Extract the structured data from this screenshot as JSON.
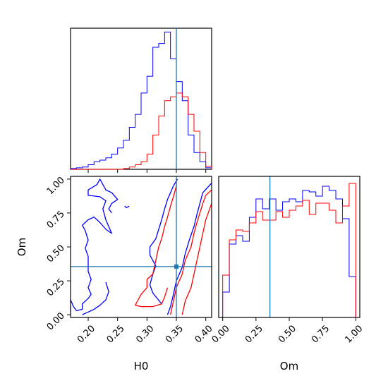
{
  "chart_data": {
    "type": "corner",
    "truth": {
      "H0": 0.35,
      "Om": 0.355
    },
    "truth_color": "#1f77b4",
    "series_colors": [
      "#0000ff",
      "#ff0000"
    ],
    "panels": [
      {
        "id": "h0-hist",
        "type": "histogram",
        "xlabel": "",
        "xlim": [
          0.17,
          0.41
        ],
        "ylim": [
          0,
          185
        ],
        "bin_edges": [
          0.17,
          0.18,
          0.19,
          0.2,
          0.21,
          0.22,
          0.23,
          0.24,
          0.25,
          0.26,
          0.27,
          0.28,
          0.29,
          0.3,
          0.31,
          0.32,
          0.33,
          0.34,
          0.35,
          0.36,
          0.37,
          0.38,
          0.39,
          0.4,
          0.41
        ],
        "series": [
          {
            "color": "#0000ff",
            "counts": [
              1,
              2,
              3,
              6,
              10,
              12,
              15,
              20,
              28,
              38,
              55,
              72,
              100,
              122,
              160,
              165,
              180,
              145,
              115,
              90,
              45,
              22,
              10,
              2
            ]
          },
          {
            "color": "#ff0000",
            "counts": [
              0,
              0,
              0,
              0,
              0,
              0,
              0,
              0,
              0,
              1,
              3,
              6,
              10,
              20,
              45,
              70,
              90,
              95,
              100,
              95,
              72,
              50,
              22,
              4
            ]
          }
        ],
        "tick_values": [
          0.2,
          0.25,
          0.3,
          0.35,
          0.4
        ]
      },
      {
        "id": "om-hist",
        "type": "histogram",
        "xlabel": "Om",
        "xlim": [
          -0.03,
          1.03
        ],
        "ylim": [
          0,
          100
        ],
        "bin_edges": [
          0,
          0.05,
          0.1,
          0.15,
          0.2,
          0.25,
          0.3,
          0.35,
          0.4,
          0.45,
          0.5,
          0.55,
          0.6,
          0.65,
          0.7,
          0.75,
          0.8,
          0.85,
          0.9,
          0.95,
          1.0
        ],
        "series": [
          {
            "color": "#0000ff",
            "counts": [
              18,
              52,
              58,
              54,
              71,
              84,
              77,
              84,
              76,
              82,
              84,
              82,
              90,
              89,
              86,
              93,
              90,
              84,
              70,
              29
            ]
          },
          {
            "color": "#ff0000",
            "counts": [
              30,
              55,
              62,
              61,
              67,
              75,
              69,
              69,
              75,
              71,
              76,
              79,
              83,
              73,
              81,
              81,
              76,
              67,
              79,
              95
            ]
          }
        ],
        "tick_labels": [
          "0.00",
          "0.25",
          "0.50",
          "0.75",
          "1.00"
        ],
        "tick_values": [
          0,
          0.25,
          0.5,
          0.75,
          1.0
        ]
      },
      {
        "id": "h0-om-2d",
        "type": "contour",
        "xlabel": "H0",
        "ylabel": "Om",
        "xlim": [
          0.17,
          0.41
        ],
        "ylim": [
          -0.02,
          1.02
        ],
        "x_tick_labels": [
          "0.20",
          "0.25",
          "0.30",
          "0.35",
          "0.40"
        ],
        "x_tick_values": [
          0.2,
          0.25,
          0.3,
          0.35,
          0.4
        ],
        "y_tick_labels": [
          "0.00",
          "0.25",
          "0.50",
          "0.75",
          "1.00"
        ],
        "y_tick_values": [
          0,
          0.25,
          0.5,
          0.75,
          1.0
        ],
        "contours": [
          {
            "color": "#0000ff",
            "points": [
              [
                0.17,
                0.11
              ],
              [
                0.175,
                0.06
              ],
              [
                0.18,
                0.03
              ],
              [
                0.19,
                0.04
              ],
              [
                0.19,
                0.08
              ],
              [
                0.2,
                0.12
              ],
              [
                0.205,
                0.15
              ],
              [
                0.2,
                0.2
              ],
              [
                0.205,
                0.26
              ],
              [
                0.2,
                0.32
              ],
              [
                0.2,
                0.37
              ],
              [
                0.2,
                0.43
              ],
              [
                0.195,
                0.49
              ],
              [
                0.2,
                0.55
              ],
              [
                0.195,
                0.62
              ],
              [
                0.19,
                0.66
              ],
              [
                0.2,
                0.7
              ],
              [
                0.21,
                0.72
              ],
              [
                0.22,
                0.68
              ],
              [
                0.23,
                0.63
              ],
              [
                0.24,
                0.6
              ],
              [
                0.235,
                0.65
              ],
              [
                0.23,
                0.7
              ],
              [
                0.225,
                0.78
              ],
              [
                0.23,
                0.84
              ],
              [
                0.22,
                0.87
              ],
              [
                0.2,
                0.88
              ],
              [
                0.2,
                0.92
              ],
              [
                0.215,
                0.96
              ],
              [
                0.22,
                1.0
              ],
              [
                0.225,
                0.96
              ],
              [
                0.23,
                0.92
              ],
              [
                0.24,
                0.9
              ],
              [
                0.25,
                0.85
              ],
              [
                0.24,
                0.82
              ],
              [
                0.235,
                0.78
              ],
              [
                0.24,
                0.75
              ]
            ]
          },
          {
            "color": "#0000ff",
            "points": [
              [
                0.17,
                0.07
              ],
              [
                0.17,
                0.0
              ]
            ]
          },
          {
            "color": "#0000ff",
            "points": [
              [
                0.262,
                0.8
              ],
              [
                0.265,
                0.79
              ],
              [
                0.27,
                0.8
              ]
            ]
          },
          {
            "color": "#0000ff",
            "points": [
              [
                0.23,
                0.24
              ],
              [
                0.235,
                0.17
              ],
              [
                0.23,
                0.11
              ],
              [
                0.22,
                0.07
              ],
              [
                0.21,
                0.04
              ],
              [
                0.2,
                0.02
              ],
              [
                0.19,
                0.0
              ]
            ]
          },
          {
            "color": "#0000ff",
            "points": [
              [
                0.325,
                0.08
              ],
              [
                0.31,
                0.16
              ],
              [
                0.305,
                0.22
              ],
              [
                0.31,
                0.3
              ],
              [
                0.315,
                0.36
              ],
              [
                0.305,
                0.44
              ],
              [
                0.305,
                0.5
              ],
              [
                0.315,
                0.56
              ],
              [
                0.32,
                0.63
              ],
              [
                0.325,
                0.7
              ],
              [
                0.33,
                0.78
              ],
              [
                0.335,
                0.85
              ],
              [
                0.34,
                0.9
              ],
              [
                0.345,
                0.95
              ],
              [
                0.352,
                1.0
              ]
            ]
          },
          {
            "color": "#0000ff",
            "points": [
              [
                0.335,
                0.0
              ],
              [
                0.34,
                0.06
              ],
              [
                0.345,
                0.15
              ],
              [
                0.35,
                0.25
              ],
              [
                0.36,
                0.35
              ],
              [
                0.365,
                0.45
              ],
              [
                0.372,
                0.55
              ],
              [
                0.38,
                0.65
              ],
              [
                0.385,
                0.74
              ],
              [
                0.39,
                0.82
              ],
              [
                0.395,
                0.9
              ],
              [
                0.41,
                0.97
              ]
            ]
          },
          {
            "color": "#ff0000",
            "points": [
              [
                0.28,
                0.07
              ],
              [
                0.285,
                0.11
              ],
              [
                0.29,
                0.15
              ],
              [
                0.3,
                0.2
              ],
              [
                0.3,
                0.26
              ],
              [
                0.31,
                0.3
              ],
              [
                0.315,
                0.4
              ],
              [
                0.32,
                0.5
              ],
              [
                0.325,
                0.56
              ],
              [
                0.33,
                0.65
              ],
              [
                0.335,
                0.72
              ],
              [
                0.34,
                0.8
              ],
              [
                0.345,
                0.87
              ],
              [
                0.35,
                0.95
              ],
              [
                0.35,
                1.0
              ]
            ]
          },
          {
            "color": "#ff0000",
            "points": [
              [
                0.28,
                0.07
              ],
              [
                0.29,
                0.06
              ],
              [
                0.31,
                0.06
              ],
              [
                0.325,
                0.08
              ],
              [
                0.33,
                0.13
              ],
              [
                0.335,
                0.2
              ]
            ]
          },
          {
            "color": "#ff0000",
            "points": [
              [
                0.34,
                0.0
              ],
              [
                0.345,
                0.1
              ],
              [
                0.35,
                0.2
              ],
              [
                0.36,
                0.3
              ],
              [
                0.365,
                0.4
              ],
              [
                0.375,
                0.5
              ],
              [
                0.38,
                0.6
              ],
              [
                0.385,
                0.68
              ],
              [
                0.39,
                0.75
              ],
              [
                0.395,
                0.82
              ],
              [
                0.4,
                0.88
              ],
              [
                0.41,
                0.92
              ]
            ]
          },
          {
            "color": "#ff0000",
            "points": [
              [
                0.36,
                0.0
              ],
              [
                0.365,
                0.1
              ],
              [
                0.375,
                0.2
              ],
              [
                0.38,
                0.3
              ],
              [
                0.385,
                0.4
              ],
              [
                0.39,
                0.5
              ],
              [
                0.395,
                0.6
              ],
              [
                0.4,
                0.7
              ],
              [
                0.41,
                0.82
              ]
            ]
          }
        ],
        "truth_marker": [
          0.35,
          0.355
        ]
      }
    ]
  }
}
